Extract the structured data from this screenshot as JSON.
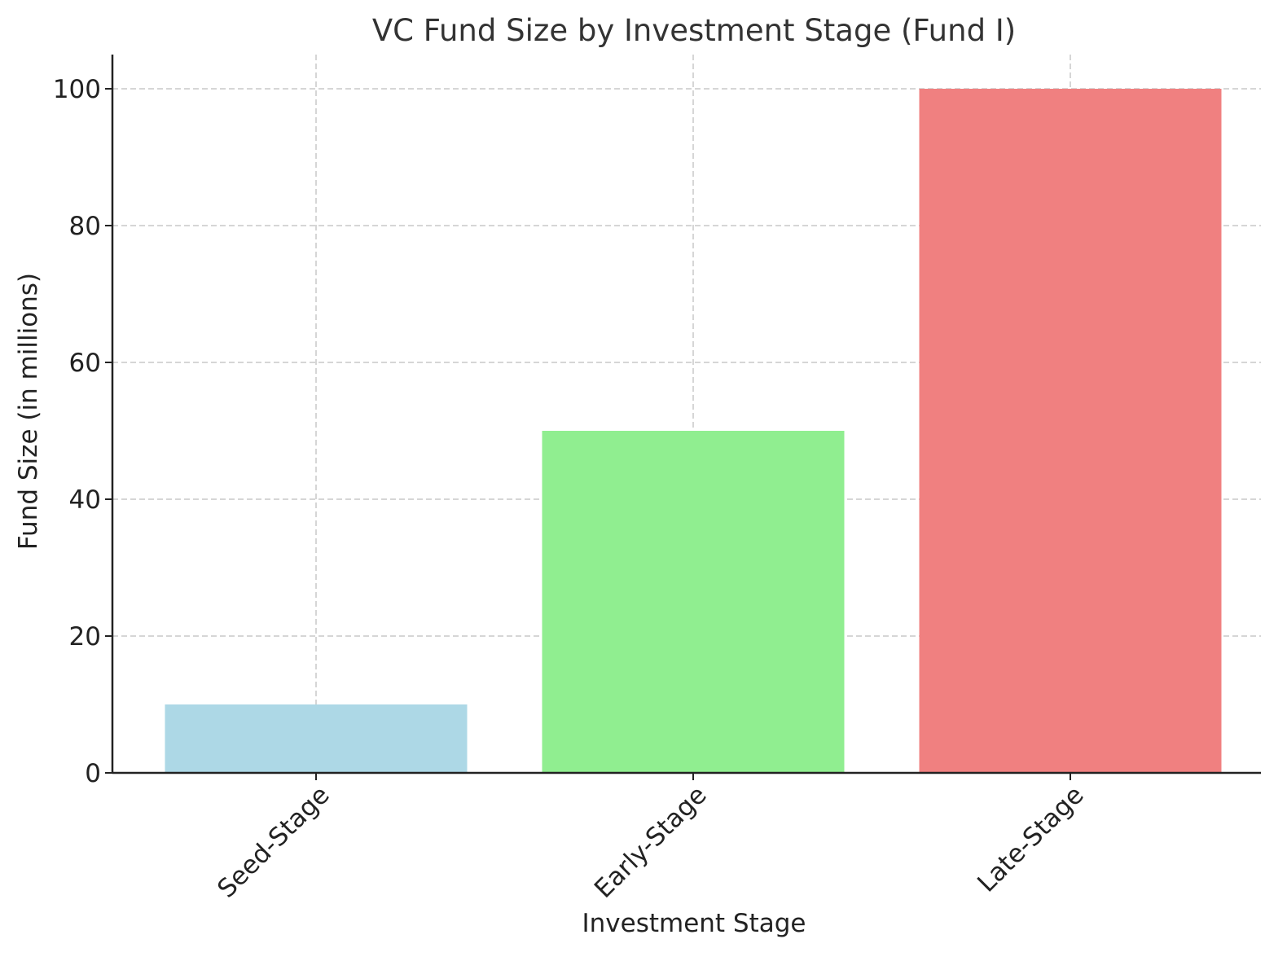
{
  "chart_data": {
    "type": "bar",
    "title": "VC Fund Size by Investment Stage (Fund I)",
    "xlabel": "Investment Stage",
    "ylabel": "Fund Size (in millions)",
    "categories": [
      "Seed-Stage",
      "Early-Stage",
      "Late-Stage"
    ],
    "values": [
      10,
      50,
      100
    ],
    "colors": [
      "#add8e6",
      "#90ee90",
      "#f08080"
    ],
    "ylim": [
      0,
      105
    ],
    "yticks": [
      0,
      20,
      40,
      60,
      80,
      100
    ],
    "grid": true,
    "legend": "none"
  }
}
